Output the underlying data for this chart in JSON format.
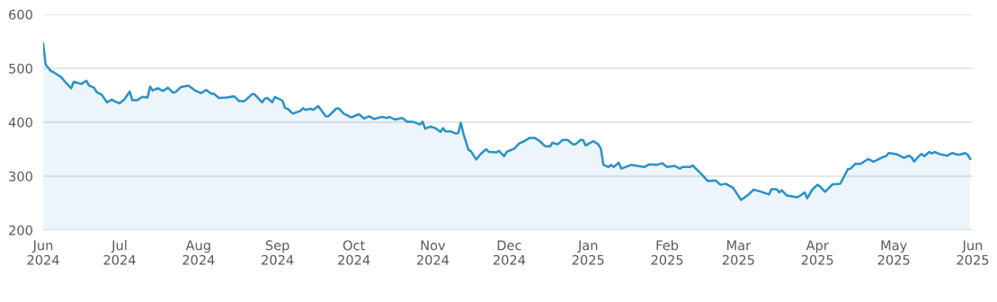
{
  "chart_data": {
    "type": "area",
    "xlim": [
      "2024-06-01",
      "2025-06-01"
    ],
    "xticks": [
      {
        "value": "2024-06-01",
        "label": "Jun\n2024"
      },
      {
        "value": "2024-07-01",
        "label": "Jul\n2024"
      },
      {
        "value": "2024-08-01",
        "label": "Aug\n2024"
      },
      {
        "value": "2024-09-01",
        "label": "Sep\n2024"
      },
      {
        "value": "2024-10-01",
        "label": "Oct\n2024"
      },
      {
        "value": "2024-11-01",
        "label": "Nov\n2024"
      },
      {
        "value": "2024-12-01",
        "label": "Dec\n2024"
      },
      {
        "value": "2025-01-01",
        "label": "Jan\n2025"
      },
      {
        "value": "2025-02-01",
        "label": "Feb\n2025"
      },
      {
        "value": "2025-03-01",
        "label": "Mar\n2025"
      },
      {
        "value": "2025-04-01",
        "label": "Apr\n2025"
      },
      {
        "value": "2025-05-01",
        "label": "May\n2025"
      },
      {
        "value": "2025-06-01",
        "label": "Jun\n2025"
      }
    ],
    "ylim": [
      200,
      600
    ],
    "yticks": [
      200,
      300,
      400,
      500,
      600
    ],
    "grid": "y",
    "legend": false,
    "series": [
      {
        "color": "#2b91c6",
        "x": [
          "2024-06-01",
          "2024-06-02",
          "2024-06-04",
          "2024-06-05",
          "2024-06-08",
          "2024-06-10",
          "2024-06-12",
          "2024-06-13",
          "2024-06-16",
          "2024-06-18",
          "2024-06-19",
          "2024-06-21",
          "2024-06-22",
          "2024-06-24",
          "2024-06-26",
          "2024-06-28",
          "2024-06-29",
          "2024-07-01",
          "2024-07-03",
          "2024-07-05",
          "2024-07-06",
          "2024-07-08",
          "2024-07-10",
          "2024-07-12",
          "2024-07-13",
          "2024-07-14",
          "2024-07-16",
          "2024-07-18",
          "2024-07-20",
          "2024-07-22",
          "2024-07-23",
          "2024-07-25",
          "2024-07-28",
          "2024-07-31",
          "2024-08-02",
          "2024-08-04",
          "2024-08-06",
          "2024-08-07",
          "2024-08-09",
          "2024-08-12",
          "2024-08-15",
          "2024-08-17",
          "2024-08-19",
          "2024-08-22",
          "2024-08-23",
          "2024-08-26",
          "2024-08-27",
          "2024-08-28",
          "2024-08-30",
          "2024-08-31",
          "2024-09-03",
          "2024-09-04",
          "2024-09-05",
          "2024-09-07",
          "2024-09-10",
          "2024-09-11",
          "2024-09-12",
          "2024-09-14",
          "2024-09-15",
          "2024-09-17",
          "2024-09-20",
          "2024-09-21",
          "2024-09-24",
          "2024-09-25",
          "2024-09-27",
          "2024-09-30",
          "2024-10-03",
          "2024-10-05",
          "2024-10-07",
          "2024-10-09",
          "2024-10-12",
          "2024-10-14",
          "2024-10-15",
          "2024-10-17",
          "2024-10-20",
          "2024-10-22",
          "2024-10-24",
          "2024-10-27",
          "2024-10-28",
          "2024-10-29",
          "2024-10-31",
          "2024-11-02",
          "2024-11-04",
          "2024-11-05",
          "2024-11-06",
          "2024-11-08",
          "2024-11-10",
          "2024-11-11",
          "2024-11-12",
          "2024-11-13",
          "2024-11-15",
          "2024-11-16",
          "2024-11-18",
          "2024-11-20",
          "2024-11-22",
          "2024-11-23",
          "2024-11-26",
          "2024-11-27",
          "2024-11-29",
          "2024-11-30",
          "2024-12-03",
          "2024-12-05",
          "2024-12-07",
          "2024-12-09",
          "2024-12-11",
          "2024-12-13",
          "2024-12-15",
          "2024-12-17",
          "2024-12-18",
          "2024-12-20",
          "2024-12-22",
          "2024-12-24",
          "2024-12-26",
          "2024-12-27",
          "2024-12-29",
          "2024-12-30",
          "2024-12-31",
          "2025-01-03",
          "2025-01-05",
          "2025-01-06",
          "2025-01-07",
          "2025-01-09",
          "2025-01-10",
          "2025-01-11",
          "2025-01-13",
          "2025-01-14",
          "2025-01-18",
          "2025-01-23",
          "2025-01-25",
          "2025-01-28",
          "2025-01-30",
          "2025-02-01",
          "2025-02-04",
          "2025-02-06",
          "2025-02-07",
          "2025-02-10",
          "2025-02-11",
          "2025-02-14",
          "2025-02-17",
          "2025-02-20",
          "2025-02-22",
          "2025-02-24",
          "2025-02-27",
          "2025-03-02",
          "2025-03-05",
          "2025-03-07",
          "2025-03-10",
          "2025-03-13",
          "2025-03-14",
          "2025-03-16",
          "2025-03-17",
          "2025-03-18",
          "2025-03-20",
          "2025-03-24",
          "2025-03-25",
          "2025-03-27",
          "2025-03-28",
          "2025-03-30",
          "2025-04-01",
          "2025-04-02",
          "2025-04-04",
          "2025-04-07",
          "2025-04-10",
          "2025-04-13",
          "2025-04-14",
          "2025-04-16",
          "2025-04-18",
          "2025-04-21",
          "2025-04-23",
          "2025-04-24",
          "2025-04-27",
          "2025-04-28",
          "2025-04-29",
          "2025-05-02",
          "2025-05-05",
          "2025-05-07",
          "2025-05-08",
          "2025-05-09",
          "2025-05-11",
          "2025-05-12",
          "2025-05-13",
          "2025-05-15",
          "2025-05-16",
          "2025-05-17",
          "2025-05-19",
          "2025-05-22",
          "2025-05-24",
          "2025-05-26",
          "2025-05-27",
          "2025-05-29",
          "2025-05-30",
          "2025-05-31"
        ],
        "values": [
          546,
          507,
          495,
          493,
          484,
          473,
          463,
          475,
          471,
          477,
          468,
          464,
          456,
          451,
          437,
          442,
          439,
          435,
          443,
          457,
          441,
          441,
          447,
          446,
          466,
          459,
          463,
          458,
          464,
          455,
          456,
          465,
          468,
          458,
          454,
          460,
          453,
          453,
          445,
          446,
          448,
          439,
          439,
          452,
          452,
          437,
          444,
          445,
          437,
          447,
          440,
          426,
          425,
          416,
          421,
          426,
          423,
          425,
          423,
          430,
          411,
          411,
          425,
          426,
          416,
          409,
          415,
          407,
          411,
          406,
          410,
          408,
          410,
          405,
          408,
          401,
          401,
          396,
          401,
          388,
          392,
          389,
          382,
          389,
          383,
          383,
          379,
          380,
          399,
          379,
          349,
          346,
          331,
          342,
          350,
          345,
          344,
          347,
          337,
          345,
          351,
          361,
          365,
          371,
          371,
          365,
          356,
          355,
          362,
          359,
          367,
          367,
          359,
          359,
          367,
          367,
          357,
          365,
          359,
          351,
          321,
          317,
          321,
          317,
          325,
          314,
          321,
          317,
          322,
          321,
          324,
          317,
          319,
          314,
          317,
          317,
          320,
          306,
          291,
          292,
          284,
          286,
          278,
          256,
          266,
          275,
          271,
          266,
          276,
          276,
          270,
          274,
          264,
          261,
          263,
          270,
          259,
          275,
          284,
          281,
          271,
          285,
          286,
          313,
          314,
          323,
          323,
          332,
          327,
          329,
          336,
          337,
          343,
          341,
          334,
          338,
          335,
          327,
          338,
          341,
          337,
          345,
          342,
          345,
          341,
          338,
          343,
          340,
          340,
          343,
          340,
          332
        ]
      }
    ]
  }
}
